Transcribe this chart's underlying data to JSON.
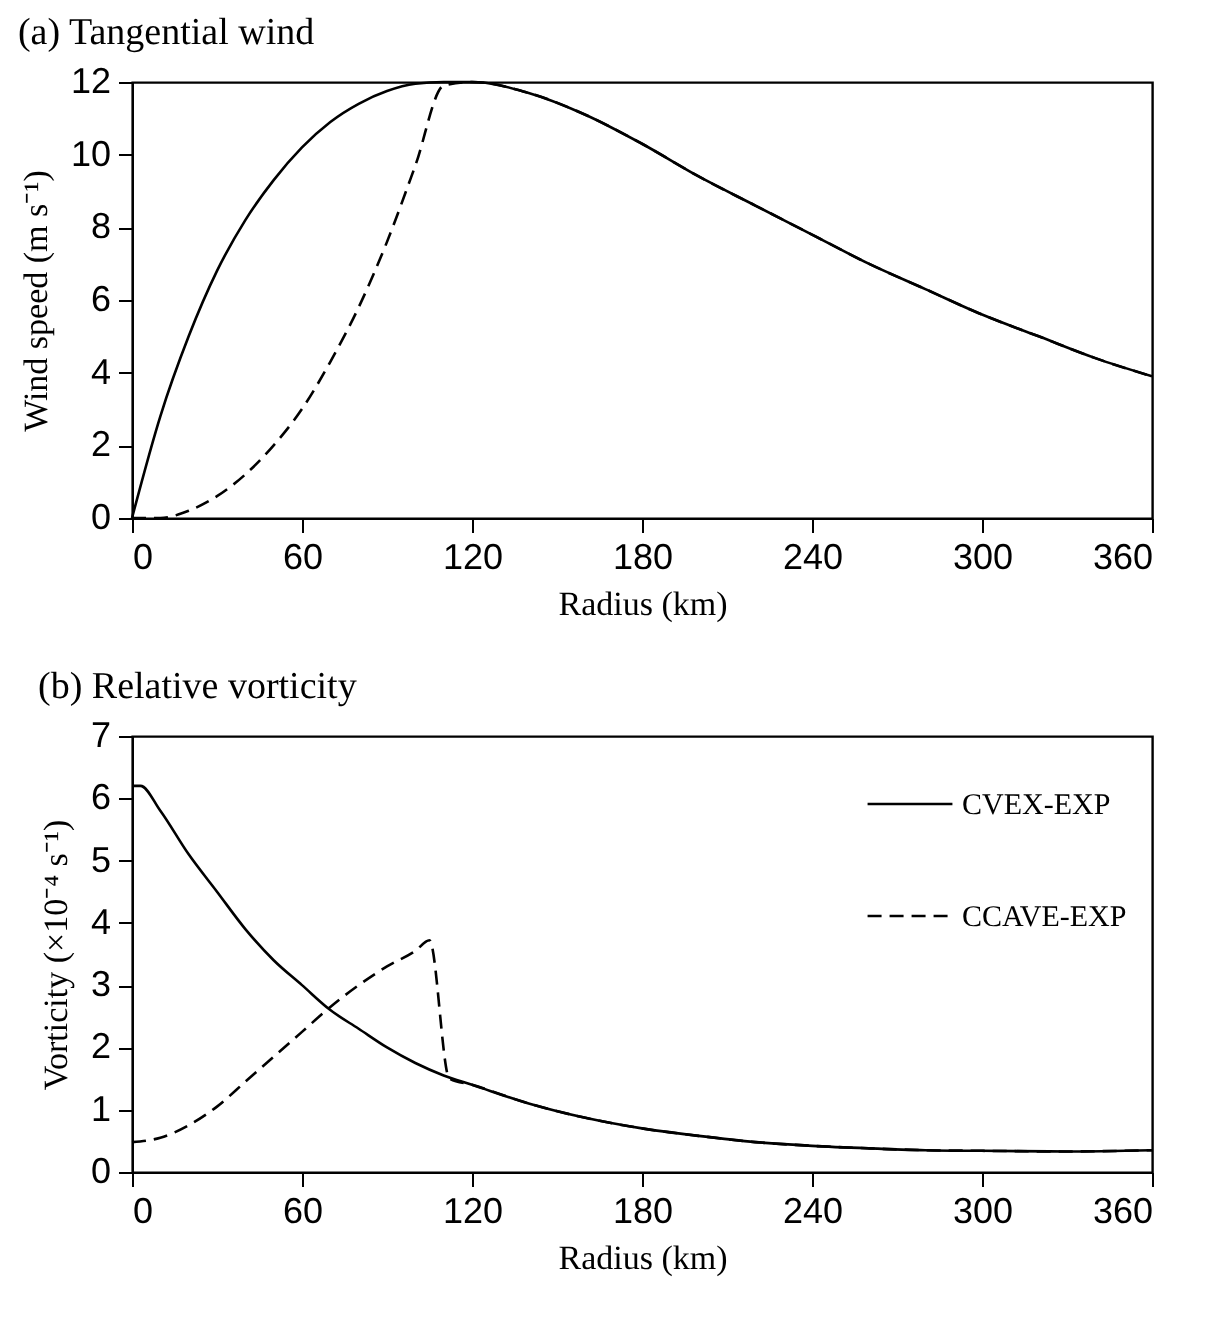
{
  "chart_data": [
    {
      "type": "line",
      "title": "(a) Tangential wind",
      "xlabel": "Radius (km)",
      "ylabel": "Wind speed (m s⁻¹)",
      "xlim": [
        0,
        360
      ],
      "xticks": [
        0,
        60,
        120,
        180,
        240,
        300,
        360
      ],
      "ylim": [
        0,
        12
      ],
      "yticks": [
        0,
        2,
        4,
        6,
        8,
        10,
        12
      ],
      "grid": false,
      "legend": false,
      "series": [
        {
          "color": "#000000",
          "line_style": "solid",
          "x": [
            0,
            10,
            20,
            30,
            40,
            50,
            60,
            70,
            80,
            90,
            100,
            110,
            120,
            140,
            160,
            180,
            200,
            220,
            240,
            260,
            280,
            300,
            320,
            340,
            360
          ],
          "values": [
            0,
            2.8,
            5.0,
            6.8,
            8.2,
            9.3,
            10.2,
            10.9,
            11.4,
            11.75,
            11.95,
            12.0,
            12.0,
            11.7,
            11.1,
            10.3,
            9.4,
            8.6,
            7.8,
            7.0,
            6.3,
            5.6,
            5.0,
            4.4,
            3.9
          ]
        },
        {
          "color": "#000000",
          "line_style": "dashed",
          "x": [
            0,
            10,
            20,
            30,
            40,
            50,
            60,
            70,
            80,
            90,
            100,
            110,
            120,
            140,
            160,
            180,
            200,
            220,
            240,
            260,
            280,
            300,
            320,
            340,
            360
          ],
          "values": [
            0,
            0,
            0.2,
            0.6,
            1.2,
            2.0,
            3.0,
            4.3,
            5.8,
            7.6,
            9.7,
            11.9,
            12.0,
            11.7,
            11.1,
            10.3,
            9.4,
            8.6,
            7.8,
            7.0,
            6.3,
            5.6,
            5.0,
            4.4,
            3.9
          ]
        }
      ]
    },
    {
      "type": "line",
      "title": "(b) Relative vorticity",
      "xlabel": "Radius (km)",
      "ylabel": "Vorticity (×10⁻⁴ s⁻¹)",
      "xlim": [
        0,
        360
      ],
      "xticks": [
        0,
        60,
        120,
        180,
        240,
        300,
        360
      ],
      "ylim": [
        0,
        7
      ],
      "yticks": [
        0,
        1,
        2,
        3,
        4,
        5,
        6,
        7
      ],
      "grid": false,
      "legend": "top right",
      "series": [
        {
          "name": "CVEX-EXP",
          "color": "#000000",
          "line_style": "solid",
          "x": [
            0,
            3,
            10,
            20,
            30,
            40,
            50,
            60,
            70,
            80,
            90,
            100,
            110,
            120,
            140,
            160,
            180,
            200,
            220,
            240,
            260,
            280,
            300,
            330,
            360
          ],
          "values": [
            6.2,
            6.2,
            5.8,
            5.1,
            4.5,
            3.9,
            3.4,
            3.0,
            2.6,
            2.3,
            2.0,
            1.75,
            1.55,
            1.4,
            1.1,
            0.87,
            0.7,
            0.58,
            0.48,
            0.42,
            0.38,
            0.35,
            0.34,
            0.33,
            0.35
          ]
        },
        {
          "name": "CCAVE-EXP",
          "color": "#000000",
          "line_style": "dashed",
          "x": [
            0,
            10,
            20,
            30,
            40,
            50,
            60,
            70,
            80,
            90,
            100,
            105,
            112,
            120,
            140,
            160,
            180,
            200,
            220,
            240,
            260,
            280,
            300,
            330,
            360
          ],
          "values": [
            0.48,
            0.55,
            0.75,
            1.05,
            1.45,
            1.85,
            2.25,
            2.65,
            3.0,
            3.3,
            3.55,
            3.72,
            1.5,
            1.4,
            1.1,
            0.87,
            0.7,
            0.58,
            0.48,
            0.42,
            0.38,
            0.35,
            0.34,
            0.33,
            0.35
          ]
        }
      ]
    }
  ]
}
